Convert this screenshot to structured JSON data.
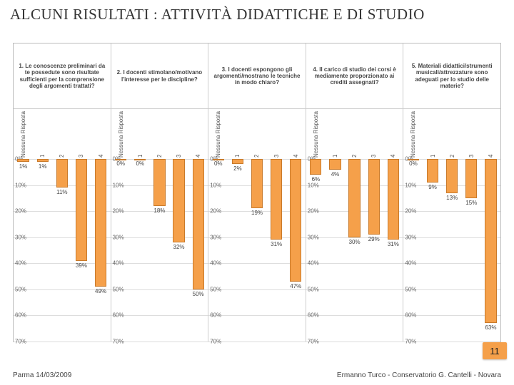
{
  "title": "ALCUNI RISULTATI : ATTIVITÀ DIDATTICHE E DI STUDIO",
  "footer_left": "Parma 14/03/2009",
  "footer_right": "Ermanno Turco - Conservatorio G. Cantelli - Novara",
  "page_number": "11",
  "chart": {
    "type": "bar",
    "y_direction": "down",
    "ylim": [
      0,
      70
    ],
    "ytick_step": 10,
    "yticks": [
      "0%",
      "10%",
      "20%",
      "30%",
      "40%",
      "50%",
      "60%",
      "70%"
    ],
    "bar_color": "#f5a04a",
    "border_color": "#c97a2a",
    "grid_color": "#dddddd",
    "axis_color": "#cccccc",
    "categories": [
      "Nessuna Risposta",
      "1",
      "2",
      "3",
      "4"
    ],
    "questions": [
      "1. Le conoscenze preliminari da te possedute sono risultate sufficienti per la comprensione degli argomenti trattati?",
      "2. I docenti stimolano/motivano l'interesse per le discipline?",
      "3. I docenti espongono gli argomenti/mostrano le tecniche in modo chiaro?",
      "4. Il carico di studio dei corsi è mediamente proporzionato ai crediti assegnati?",
      "5. Materiali didattici/strumenti musicali/attrezzature sono adeguati per lo studio delle materie?"
    ],
    "series": [
      [
        1,
        1,
        11,
        39,
        49
      ],
      [
        0,
        0,
        18,
        32,
        50
      ],
      [
        0,
        2,
        19,
        31,
        47
      ],
      [
        6,
        4,
        30,
        29,
        31
      ],
      [
        0,
        9,
        13,
        15,
        63
      ]
    ]
  }
}
